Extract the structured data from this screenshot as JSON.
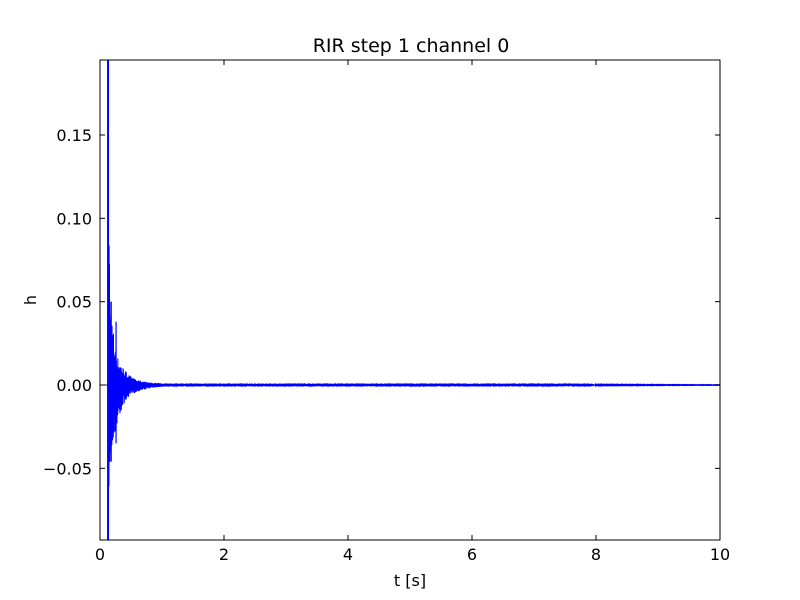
{
  "chart_data": {
    "type": "line",
    "title": "RIR step 1 channel 0",
    "xlabel": "t [s]",
    "ylabel": "h",
    "xlim": [
      0,
      10
    ],
    "ylim": [
      -0.093,
      0.195
    ],
    "xticks": [
      0,
      2,
      4,
      6,
      8,
      10
    ],
    "xtick_labels": [
      "0",
      "2",
      "4",
      "6",
      "8",
      "10"
    ],
    "yticks": [
      -0.05,
      0.0,
      0.05,
      0.1,
      0.15
    ],
    "ytick_labels": [
      "−0.05",
      "0.00",
      "0.05",
      "0.10",
      "0.15"
    ],
    "grid": false,
    "line_color": "#0000ff",
    "impulse_time": 0.13,
    "impulse_peak": 0.195,
    "impulse_trough": -0.093,
    "envelope": {
      "t": [
        0.1,
        0.13,
        0.16,
        0.2,
        0.25,
        0.3,
        0.35,
        0.4,
        0.5,
        0.6,
        0.8,
        1.0,
        1.5,
        2.0,
        3.0,
        4.0,
        6.0,
        7.9,
        8.0,
        10.0
      ],
      "upper": [
        0.002,
        0.195,
        0.05,
        0.038,
        0.022,
        0.015,
        0.012,
        0.009,
        0.005,
        0.003,
        0.0015,
        0.001,
        0.001,
        0.001,
        0.001,
        0.001,
        0.001,
        0.001,
        0.0002,
        0.0001
      ],
      "lower": [
        -0.002,
        -0.093,
        -0.047,
        -0.035,
        -0.028,
        -0.02,
        -0.015,
        -0.01,
        -0.006,
        -0.004,
        -0.002,
        -0.001,
        -0.001,
        -0.001,
        -0.001,
        -0.001,
        -0.001,
        -0.001,
        -0.0002,
        -0.0001
      ]
    }
  }
}
